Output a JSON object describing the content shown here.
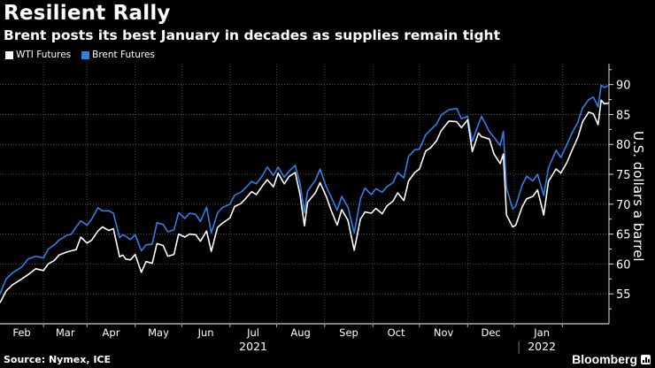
{
  "chart_data": {
    "type": "line",
    "title": "Resilient Rally",
    "subtitle": "Brent posts its best January in decades as supplies remain tight",
    "ylabel": "U.S. dollars a barrel",
    "xlabel": "",
    "ylim": [
      50,
      93.5
    ],
    "yticks": [
      55,
      60,
      65,
      70,
      75,
      80,
      85,
      90
    ],
    "x_tick_labels": [
      "Feb",
      "Mar",
      "Apr",
      "May",
      "Jun",
      "Jul",
      "Aug",
      "Sep",
      "Oct",
      "Nov",
      "Dec",
      "Jan"
    ],
    "x_tick_dates": [
      "2021-02-01",
      "2021-03-01",
      "2021-04-01",
      "2021-05-01",
      "2021-06-01",
      "2021-07-01",
      "2021-08-01",
      "2021-09-01",
      "2021-10-01",
      "2021-11-01",
      "2021-12-01",
      "2022-01-01"
    ],
    "year_labels": [
      {
        "label": "2021",
        "under": "Jul"
      },
      {
        "label": "2022",
        "under": "Jan"
      }
    ],
    "x_range": [
      "2021-01-04",
      "2022-01-31"
    ],
    "grid": true,
    "legend_position": "top-left",
    "series": [
      {
        "name": "WTI Futures",
        "color": "#ffffff",
        "points": [
          [
            "2021-01-04",
            53.5
          ],
          [
            "2021-01-08",
            55.5
          ],
          [
            "2021-01-12",
            56.5
          ],
          [
            "2021-01-18",
            57.5
          ],
          [
            "2021-01-22",
            58.2
          ],
          [
            "2021-01-27",
            59.2
          ],
          [
            "2021-02-01",
            58.9
          ],
          [
            "2021-02-04",
            60.0
          ],
          [
            "2021-02-08",
            60.6
          ],
          [
            "2021-02-11",
            61.5
          ],
          [
            "2021-02-16",
            62.0
          ],
          [
            "2021-02-19",
            62.2
          ],
          [
            "2021-02-22",
            62.4
          ],
          [
            "2021-02-25",
            64.5
          ],
          [
            "2021-03-01",
            63.5
          ],
          [
            "2021-03-04",
            64.0
          ],
          [
            "2021-03-08",
            65.5
          ],
          [
            "2021-03-11",
            66.2
          ],
          [
            "2021-03-15",
            65.6
          ],
          [
            "2021-03-18",
            65.9
          ],
          [
            "2021-03-22",
            61.2
          ],
          [
            "2021-03-24",
            61.5
          ],
          [
            "2021-03-26",
            60.8
          ],
          [
            "2021-03-29",
            60.7
          ],
          [
            "2021-04-01",
            61.6
          ],
          [
            "2021-04-05",
            58.6
          ],
          [
            "2021-04-08",
            60.4
          ],
          [
            "2021-04-12",
            60.1
          ],
          [
            "2021-04-15",
            63.4
          ],
          [
            "2021-04-19",
            63.1
          ],
          [
            "2021-04-22",
            61.3
          ],
          [
            "2021-04-26",
            61.6
          ],
          [
            "2021-04-29",
            65.0
          ],
          [
            "2021-05-03",
            64.5
          ],
          [
            "2021-05-06",
            65.0
          ],
          [
            "2021-05-10",
            64.9
          ],
          [
            "2021-05-13",
            63.8
          ],
          [
            "2021-05-17",
            65.5
          ],
          [
            "2021-05-20",
            62.1
          ],
          [
            "2021-05-24",
            66.1
          ],
          [
            "2021-05-27",
            66.8
          ],
          [
            "2021-06-01",
            67.7
          ],
          [
            "2021-06-04",
            69.6
          ],
          [
            "2021-06-08",
            70.1
          ],
          [
            "2021-06-11",
            70.9
          ],
          [
            "2021-06-15",
            72.1
          ],
          [
            "2021-06-18",
            71.6
          ],
          [
            "2021-06-22",
            73.1
          ],
          [
            "2021-06-25",
            74.1
          ],
          [
            "2021-06-29",
            72.9
          ],
          [
            "2021-07-02",
            75.2
          ],
          [
            "2021-07-06",
            73.4
          ],
          [
            "2021-07-09",
            74.6
          ],
          [
            "2021-07-13",
            75.3
          ],
          [
            "2021-07-16",
            71.8
          ],
          [
            "2021-07-19",
            66.4
          ],
          [
            "2021-07-21",
            70.3
          ],
          [
            "2021-07-26",
            71.9
          ],
          [
            "2021-07-29",
            73.6
          ],
          [
            "2021-08-02",
            71.3
          ],
          [
            "2021-08-05",
            69.1
          ],
          [
            "2021-08-09",
            66.5
          ],
          [
            "2021-08-12",
            69.1
          ],
          [
            "2021-08-16",
            67.3
          ],
          [
            "2021-08-20",
            62.3
          ],
          [
            "2021-08-24",
            67.5
          ],
          [
            "2021-08-27",
            68.7
          ],
          [
            "2021-08-31",
            68.5
          ],
          [
            "2021-09-03",
            69.3
          ],
          [
            "2021-09-07",
            68.4
          ],
          [
            "2021-09-10",
            69.7
          ],
          [
            "2021-09-14",
            70.5
          ],
          [
            "2021-09-17",
            71.9
          ],
          [
            "2021-09-21",
            70.6
          ],
          [
            "2021-09-24",
            73.9
          ],
          [
            "2021-09-28",
            75.3
          ],
          [
            "2021-10-01",
            75.9
          ],
          [
            "2021-10-05",
            78.9
          ],
          [
            "2021-10-08",
            79.4
          ],
          [
            "2021-10-12",
            80.6
          ],
          [
            "2021-10-15",
            82.3
          ],
          [
            "2021-10-20",
            83.9
          ],
          [
            "2021-10-25",
            83.8
          ],
          [
            "2021-10-28",
            82.8
          ],
          [
            "2021-11-01",
            84.1
          ],
          [
            "2021-11-04",
            78.8
          ],
          [
            "2021-11-08",
            81.9
          ],
          [
            "2021-11-10",
            81.3
          ],
          [
            "2021-11-15",
            80.9
          ],
          [
            "2021-11-18",
            78.4
          ],
          [
            "2021-11-22",
            76.8
          ],
          [
            "2021-11-24",
            78.4
          ],
          [
            "2021-11-26",
            68.2
          ],
          [
            "2021-11-30",
            66.2
          ],
          [
            "2021-12-02",
            66.5
          ],
          [
            "2021-12-06",
            69.5
          ],
          [
            "2021-12-09",
            70.9
          ],
          [
            "2021-12-13",
            71.3
          ],
          [
            "2021-12-16",
            72.4
          ],
          [
            "2021-12-20",
            68.2
          ],
          [
            "2021-12-23",
            73.8
          ],
          [
            "2021-12-28",
            75.9
          ],
          [
            "2021-12-31",
            75.2
          ],
          [
            "2022-01-04",
            77.0
          ],
          [
            "2022-01-07",
            78.9
          ],
          [
            "2022-01-11",
            81.2
          ],
          [
            "2022-01-14",
            83.8
          ],
          [
            "2022-01-18",
            85.4
          ],
          [
            "2022-01-21",
            85.1
          ],
          [
            "2022-01-24",
            83.3
          ],
          [
            "2022-01-26",
            87.4
          ],
          [
            "2022-01-28",
            86.8
          ],
          [
            "2022-01-31",
            86.9
          ]
        ]
      },
      {
        "name": "Brent Futures",
        "color": "#2f7fe6",
        "points": [
          [
            "2021-01-04",
            55.0
          ],
          [
            "2021-01-08",
            57.5
          ],
          [
            "2021-01-12",
            58.5
          ],
          [
            "2021-01-18",
            59.5
          ],
          [
            "2021-01-22",
            60.8
          ],
          [
            "2021-01-27",
            61.3
          ],
          [
            "2021-02-01",
            61.0
          ],
          [
            "2021-02-04",
            62.5
          ],
          [
            "2021-02-08",
            63.2
          ],
          [
            "2021-02-11",
            64.0
          ],
          [
            "2021-02-16",
            64.8
          ],
          [
            "2021-02-19",
            65.0
          ],
          [
            "2021-02-22",
            66.2
          ],
          [
            "2021-02-25",
            67.2
          ],
          [
            "2021-03-01",
            66.5
          ],
          [
            "2021-03-04",
            67.5
          ],
          [
            "2021-03-08",
            69.4
          ],
          [
            "2021-03-11",
            68.9
          ],
          [
            "2021-03-15",
            68.9
          ],
          [
            "2021-03-18",
            68.5
          ],
          [
            "2021-03-22",
            64.4
          ],
          [
            "2021-03-24",
            64.9
          ],
          [
            "2021-03-26",
            64.6
          ],
          [
            "2021-03-29",
            64.1
          ],
          [
            "2021-04-01",
            64.9
          ],
          [
            "2021-04-05",
            62.2
          ],
          [
            "2021-04-08",
            63.2
          ],
          [
            "2021-04-12",
            63.3
          ],
          [
            "2021-04-15",
            66.9
          ],
          [
            "2021-04-19",
            66.6
          ],
          [
            "2021-04-22",
            65.4
          ],
          [
            "2021-04-26",
            65.7
          ],
          [
            "2021-04-29",
            68.6
          ],
          [
            "2021-05-03",
            67.6
          ],
          [
            "2021-05-06",
            68.5
          ],
          [
            "2021-05-10",
            68.3
          ],
          [
            "2021-05-13",
            67.1
          ],
          [
            "2021-05-17",
            69.5
          ],
          [
            "2021-05-20",
            65.2
          ],
          [
            "2021-05-24",
            68.5
          ],
          [
            "2021-05-27",
            69.4
          ],
          [
            "2021-06-01",
            70.0
          ],
          [
            "2021-06-04",
            71.5
          ],
          [
            "2021-06-08",
            72.0
          ],
          [
            "2021-06-11",
            72.7
          ],
          [
            "2021-06-15",
            73.8
          ],
          [
            "2021-06-18",
            73.4
          ],
          [
            "2021-06-22",
            74.8
          ],
          [
            "2021-06-25",
            76.2
          ],
          [
            "2021-06-29",
            74.8
          ],
          [
            "2021-07-02",
            76.2
          ],
          [
            "2021-07-06",
            74.5
          ],
          [
            "2021-07-09",
            75.5
          ],
          [
            "2021-07-13",
            76.5
          ],
          [
            "2021-07-16",
            73.6
          ],
          [
            "2021-07-19",
            68.6
          ],
          [
            "2021-07-21",
            72.2
          ],
          [
            "2021-07-26",
            74.0
          ],
          [
            "2021-07-29",
            75.9
          ],
          [
            "2021-08-02",
            72.9
          ],
          [
            "2021-08-05",
            71.3
          ],
          [
            "2021-08-09",
            69.0
          ],
          [
            "2021-08-12",
            71.3
          ],
          [
            "2021-08-16",
            69.5
          ],
          [
            "2021-08-20",
            65.2
          ],
          [
            "2021-08-24",
            70.9
          ],
          [
            "2021-08-27",
            72.7
          ],
          [
            "2021-08-31",
            71.6
          ],
          [
            "2021-09-03",
            72.6
          ],
          [
            "2021-09-07",
            72.0
          ],
          [
            "2021-09-10",
            72.9
          ],
          [
            "2021-09-14",
            73.6
          ],
          [
            "2021-09-17",
            75.3
          ],
          [
            "2021-09-21",
            74.4
          ],
          [
            "2021-09-24",
            78.0
          ],
          [
            "2021-09-28",
            79.1
          ],
          [
            "2021-10-01",
            79.2
          ],
          [
            "2021-10-05",
            81.6
          ],
          [
            "2021-10-08",
            82.4
          ],
          [
            "2021-10-12",
            83.4
          ],
          [
            "2021-10-15",
            84.9
          ],
          [
            "2021-10-20",
            85.8
          ],
          [
            "2021-10-25",
            86.0
          ],
          [
            "2021-10-28",
            84.3
          ],
          [
            "2021-11-01",
            84.7
          ],
          [
            "2021-11-04",
            80.5
          ],
          [
            "2021-11-08",
            83.4
          ],
          [
            "2021-11-10",
            84.7
          ],
          [
            "2021-11-15",
            82.1
          ],
          [
            "2021-11-18",
            81.2
          ],
          [
            "2021-11-22",
            79.8
          ],
          [
            "2021-11-24",
            82.2
          ],
          [
            "2021-11-26",
            72.7
          ],
          [
            "2021-11-30",
            69.2
          ],
          [
            "2021-12-02",
            69.7
          ],
          [
            "2021-12-06",
            73.1
          ],
          [
            "2021-12-09",
            74.7
          ],
          [
            "2021-12-13",
            73.9
          ],
          [
            "2021-12-16",
            75.0
          ],
          [
            "2021-12-20",
            71.5
          ],
          [
            "2021-12-23",
            76.1
          ],
          [
            "2021-12-28",
            79.0
          ],
          [
            "2021-12-31",
            77.8
          ],
          [
            "2022-01-04",
            80.0
          ],
          [
            "2022-01-07",
            81.8
          ],
          [
            "2022-01-11",
            83.7
          ],
          [
            "2022-01-14",
            86.1
          ],
          [
            "2022-01-18",
            87.5
          ],
          [
            "2022-01-21",
            87.9
          ],
          [
            "2022-01-24",
            86.3
          ],
          [
            "2022-01-26",
            89.9
          ],
          [
            "2022-01-28",
            89.5
          ],
          [
            "2022-01-31",
            89.9
          ]
        ]
      }
    ]
  },
  "legend": {
    "items": [
      {
        "label": "WTI Futures",
        "color": "#ffffff"
      },
      {
        "label": "Brent Futures",
        "color": "#2f7fe6"
      }
    ]
  },
  "footer": {
    "source": "Source: Nymex, ICE",
    "brand": "Bloomberg"
  }
}
